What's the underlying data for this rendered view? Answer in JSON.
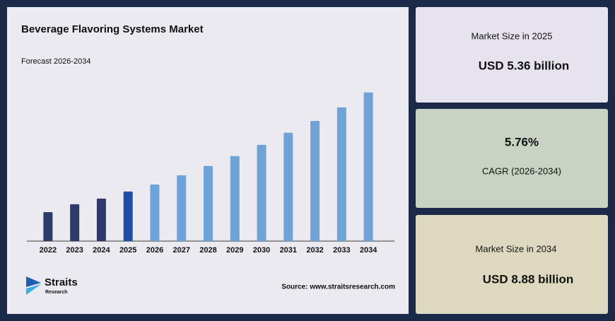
{
  "chart_data": {
    "type": "bar",
    "title": "Beverage Flavoring Systems Market",
    "subtitle": "Forecast 2026-2034",
    "categories": [
      "2022",
      "2023",
      "2024",
      "2025",
      "2026",
      "2027",
      "2028",
      "2029",
      "2030",
      "2031",
      "2032",
      "2033",
      "2034"
    ],
    "values": [
      4.63,
      4.91,
      5.11,
      5.36,
      5.61,
      5.94,
      6.27,
      6.62,
      7.02,
      7.45,
      7.87,
      8.35,
      8.88
    ],
    "colors": [
      "#2d3a6a",
      "#2d3a6a",
      "#2d3a6a",
      "#1e4ea6",
      "#6fa3d8",
      "#6fa3d8",
      "#6fa3d8",
      "#6fa3d8",
      "#6fa3d8",
      "#6fa3d8",
      "#6fa3d8",
      "#6fa3d8",
      "#6fa3d8"
    ],
    "ylim": [
      3.6,
      9.0
    ],
    "source": "Source: www.straitsresearch.com"
  },
  "logo": {
    "name": "Straits",
    "sub": "Research"
  },
  "cards": [
    {
      "label": "Market Size in 2025",
      "value": "USD 5.36 billion"
    },
    {
      "value": "5.76%",
      "label": "CAGR (2026-2034)"
    },
    {
      "label": "Market Size in 2034",
      "value": "USD 8.88 billion"
    }
  ]
}
